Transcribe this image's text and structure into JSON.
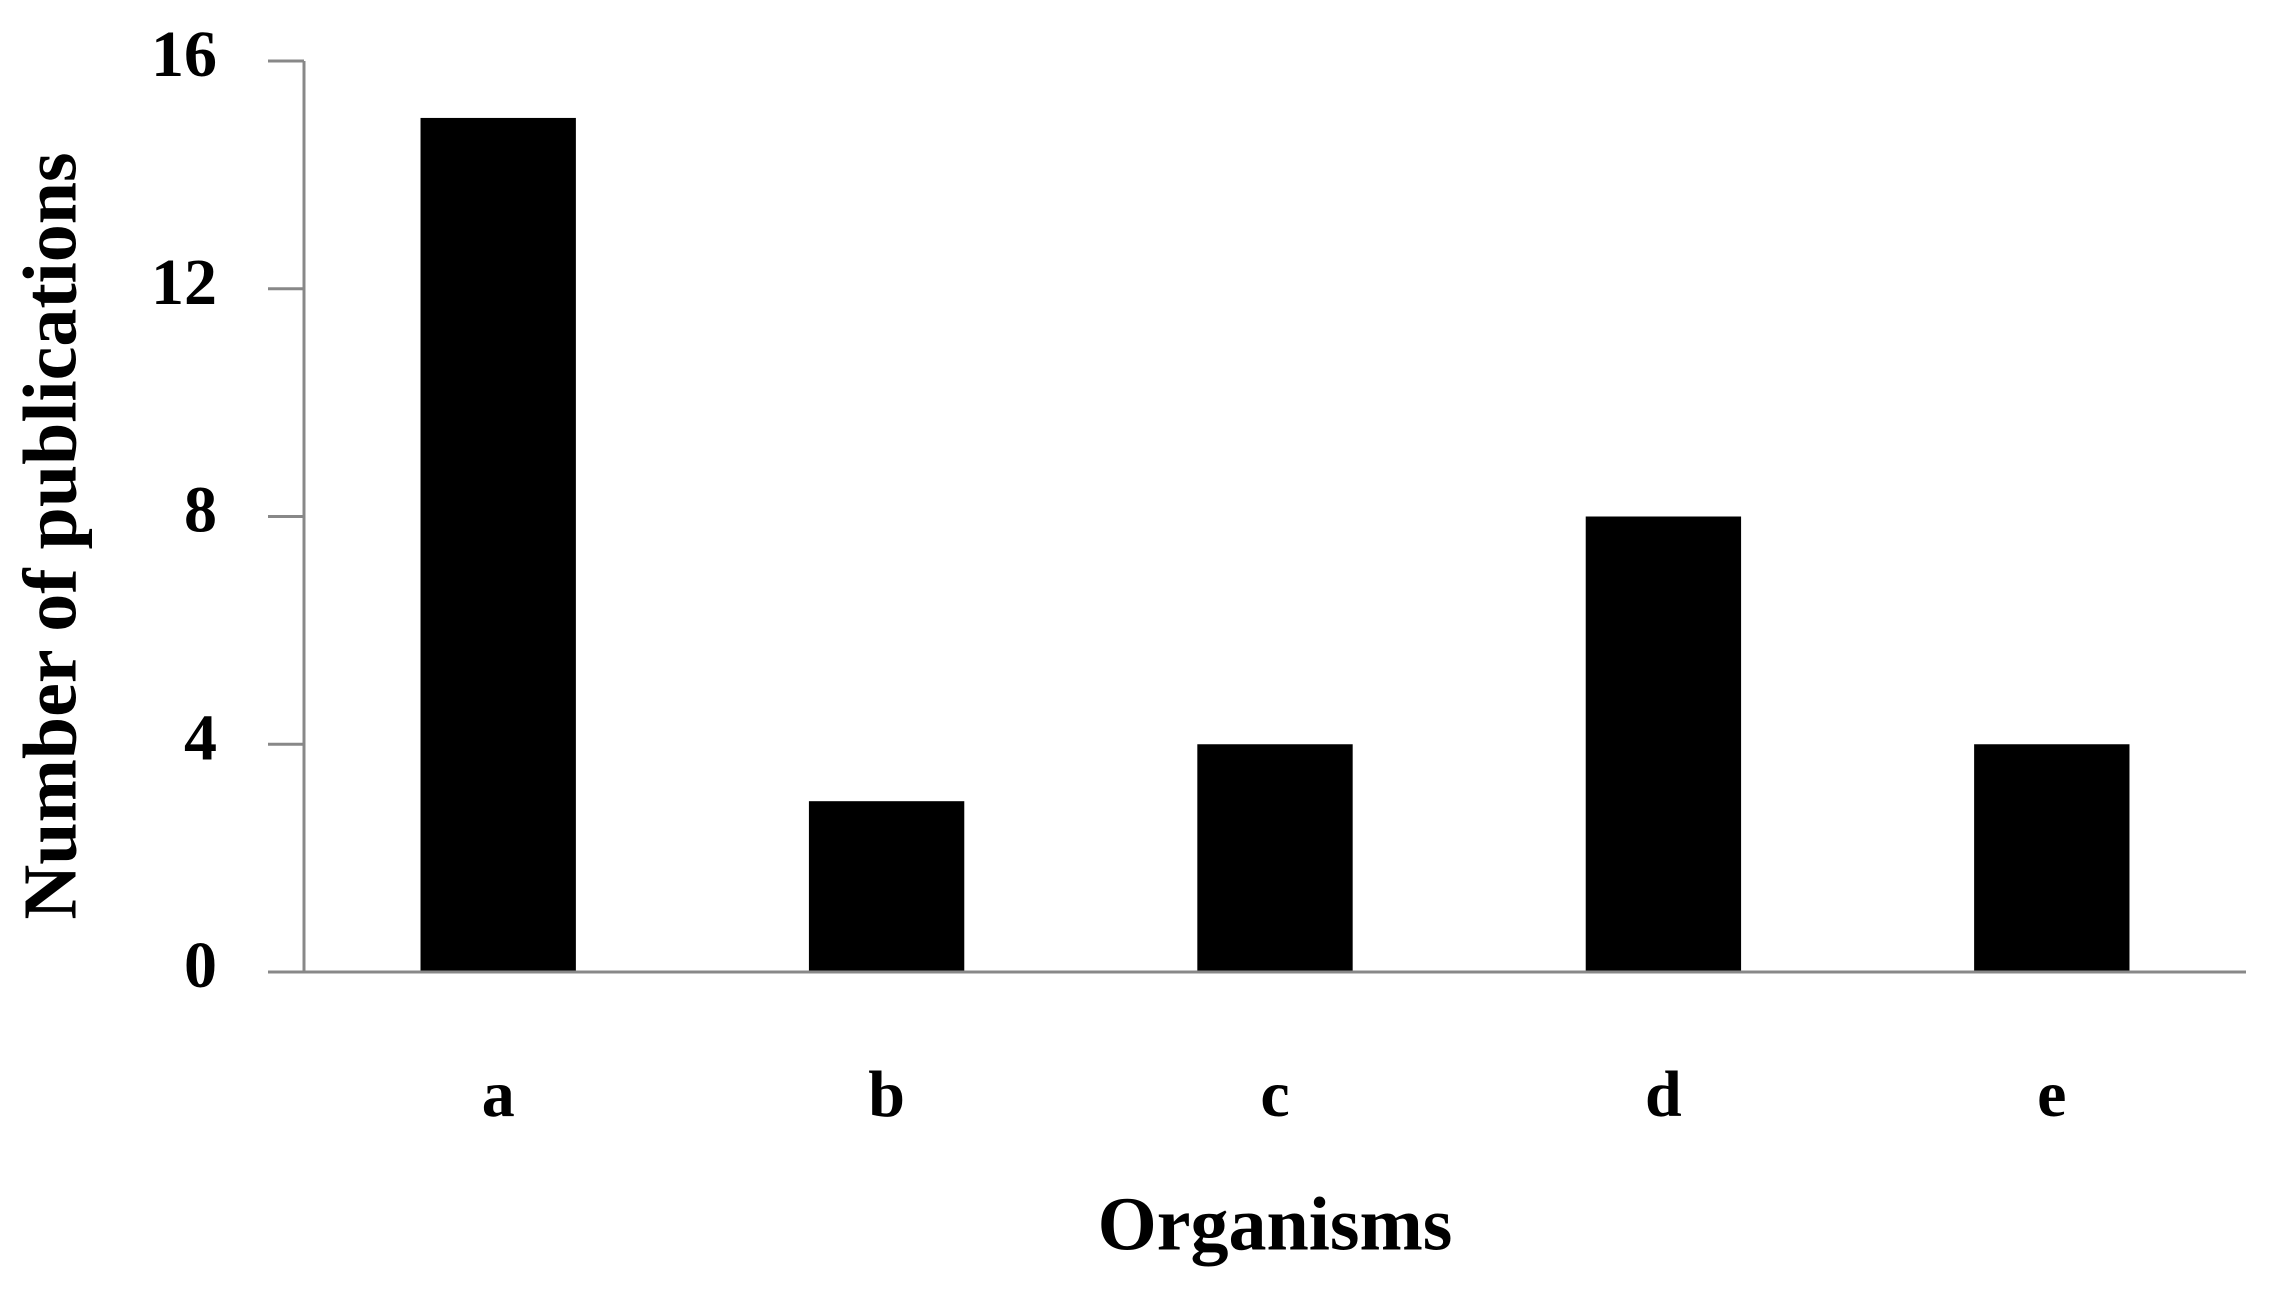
{
  "chart_data": {
    "type": "bar",
    "categories": [
      "a",
      "b",
      "c",
      "d",
      "e"
    ],
    "values": [
      15,
      3,
      4,
      8,
      4
    ],
    "color": "#000000",
    "ylim": [
      0,
      16
    ],
    "yticks": [
      0,
      4,
      8,
      12,
      16
    ],
    "grid": false,
    "xlabel": "Organisms",
    "ylabel": "Number of publications"
  }
}
